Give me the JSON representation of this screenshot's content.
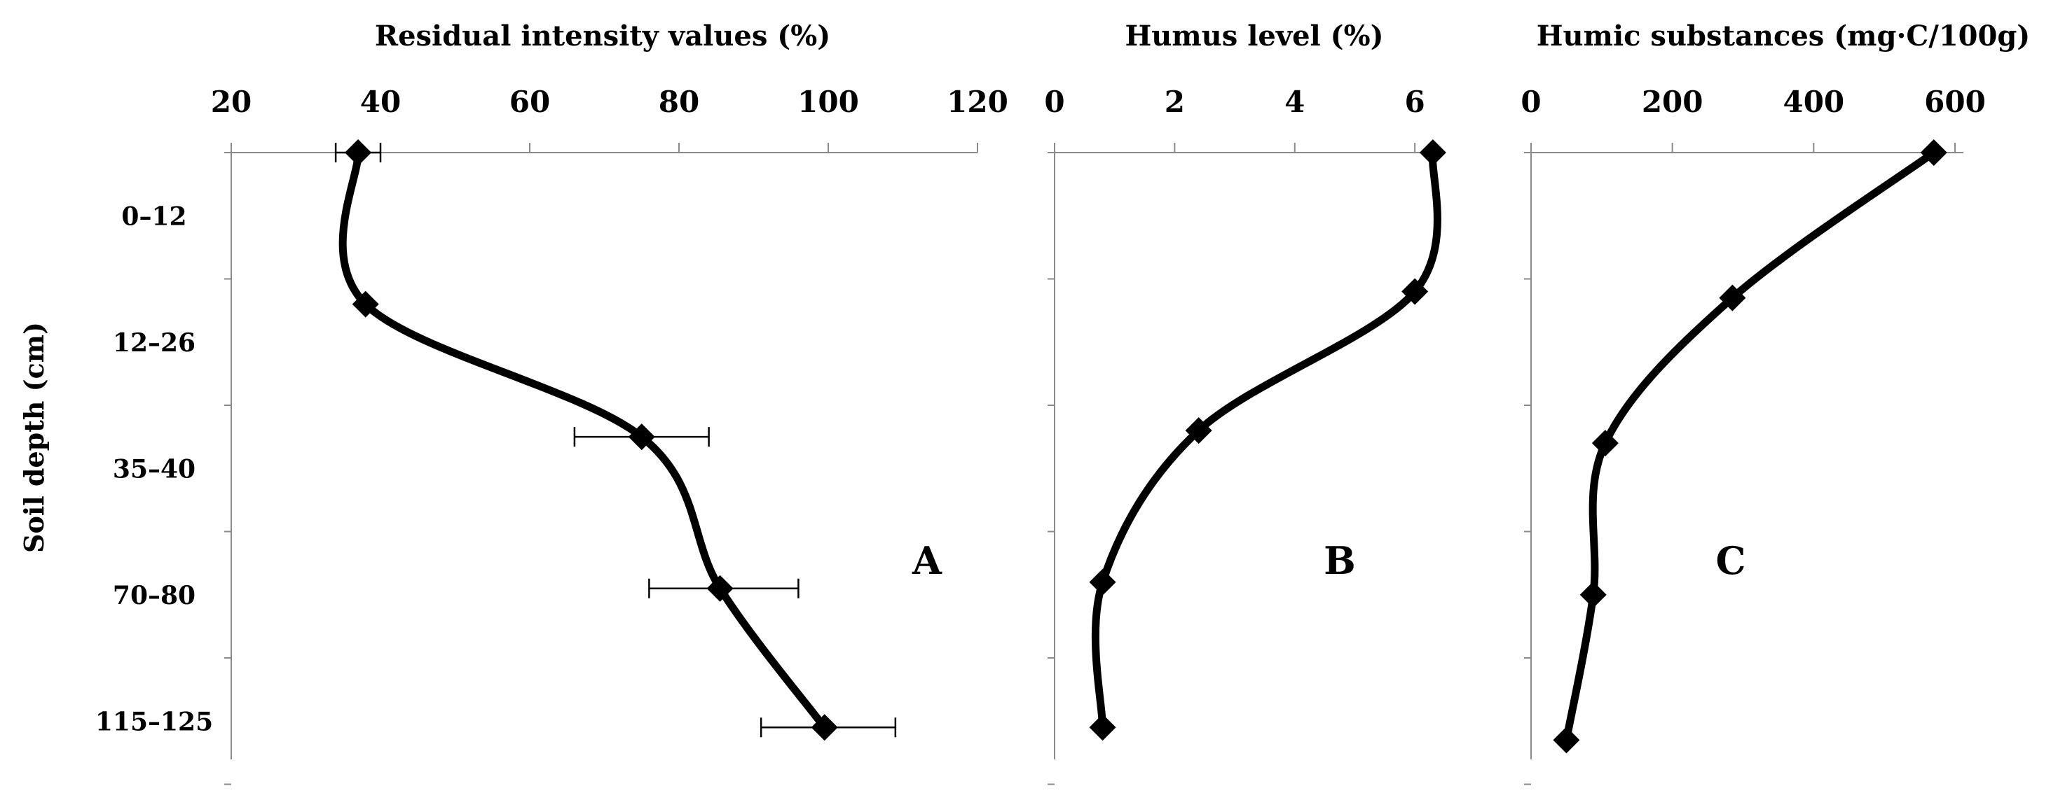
{
  "figure": {
    "ylabel": "Soil depth (cm)",
    "depth_categories": [
      "0–12",
      "12–26",
      "35–40",
      "70–80",
      "115–125"
    ]
  },
  "chart_data": [
    {
      "type": "line",
      "panel_label": "A",
      "title": "Residual intensity values (%)",
      "x_axis_position": "top",
      "xlim": [
        20,
        120
      ],
      "xticks": [
        20,
        40,
        60,
        80,
        100,
        120
      ],
      "y_categories": [
        "0–12",
        "12–26",
        "35–40",
        "70–80",
        "115–125"
      ],
      "y_reversed": true,
      "grid": false,
      "points": [
        {
          "x": 37,
          "y_index": 0
        },
        {
          "x": 38,
          "y_index": 1.2
        },
        {
          "x": 75,
          "y_index": 2.25
        },
        {
          "x": 85.5,
          "y_index": 3.45
        },
        {
          "x": 99.5,
          "y_index": 4.55
        }
      ],
      "error_bars": [
        {
          "y_index": 0,
          "low": 34,
          "high": 40
        },
        {
          "y_index": 2.25,
          "low": 66,
          "high": 84
        },
        {
          "y_index": 3.45,
          "low": 76,
          "high": 96
        },
        {
          "y_index": 4.55,
          "low": 91,
          "high": 109
        }
      ],
      "color": "#000000"
    },
    {
      "type": "line",
      "panel_label": "B",
      "title": "Humus level (%)",
      "x_axis_position": "top",
      "xlim": [
        0,
        6.5
      ],
      "xticks": [
        0,
        2,
        4,
        6
      ],
      "y_categories": [
        "0–12",
        "12–26",
        "35–40",
        "70–80",
        "115–125"
      ],
      "y_reversed": true,
      "grid": false,
      "points": [
        {
          "x": 6.3,
          "y_index": 0
        },
        {
          "x": 6.0,
          "y_index": 1.1
        },
        {
          "x": 2.4,
          "y_index": 2.2
        },
        {
          "x": 0.8,
          "y_index": 3.4
        },
        {
          "x": 0.8,
          "y_index": 4.55
        }
      ],
      "color": "#000000"
    },
    {
      "type": "line",
      "panel_label": "C",
      "title": "Humic substances (mg·C/100g)",
      "x_axis_position": "top",
      "xlim": [
        0,
        600
      ],
      "xticks": [
        0,
        200,
        400,
        600
      ],
      "y_categories": [
        "0–12",
        "12–26",
        "35–40",
        "70–80",
        "115–125"
      ],
      "y_reversed": true,
      "grid": false,
      "points": [
        {
          "x": 570,
          "y_index": 0
        },
        {
          "x": 285,
          "y_index": 1.15
        },
        {
          "x": 105,
          "y_index": 2.3
        },
        {
          "x": 88,
          "y_index": 3.5
        },
        {
          "x": 50,
          "y_index": 4.65
        }
      ],
      "color": "#000000"
    }
  ]
}
